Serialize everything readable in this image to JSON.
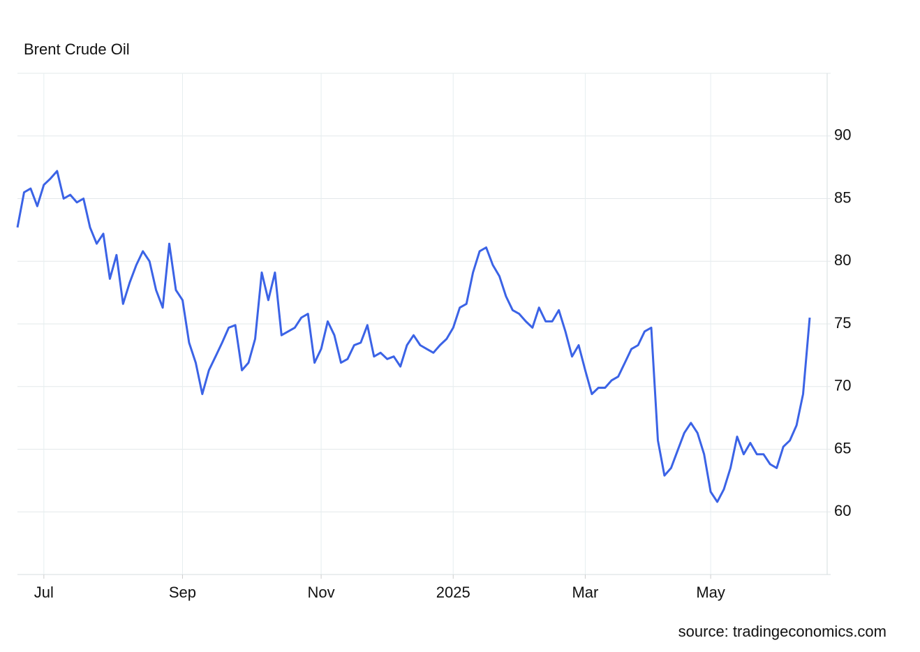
{
  "chart_data": {
    "type": "line",
    "title": "Brent Crude Oil",
    "source": "source: tradingeconomics.com",
    "categories": [
      null,
      null,
      null,
      null,
      "Jul",
      null,
      null,
      null,
      null,
      null,
      null,
      null,
      null,
      null,
      null,
      null,
      null,
      null,
      null,
      null,
      null,
      null,
      null,
      null,
      null,
      "Sep",
      null,
      null,
      null,
      null,
      null,
      null,
      null,
      null,
      null,
      null,
      null,
      null,
      null,
      null,
      null,
      null,
      null,
      null,
      null,
      null,
      "Nov",
      null,
      null,
      null,
      null,
      null,
      null,
      null,
      null,
      null,
      null,
      null,
      null,
      null,
      null,
      null,
      null,
      null,
      null,
      null,
      "2025",
      null,
      null,
      null,
      null,
      null,
      null,
      null,
      null,
      null,
      null,
      null,
      null,
      null,
      null,
      null,
      null,
      null,
      null,
      null,
      "Mar",
      null,
      null,
      null,
      null,
      null,
      null,
      null,
      null,
      null,
      null,
      null,
      null,
      null,
      null,
      null,
      null,
      null,
      null,
      "May",
      null,
      null,
      null,
      null,
      null,
      null,
      null,
      null,
      null,
      null,
      null,
      null,
      null,
      null,
      null
    ],
    "series": [
      {
        "name": "Brent Crude Oil",
        "color": "#3b63e6",
        "values": [
          82.7,
          85.5,
          85.8,
          84.4,
          86.1,
          86.6,
          87.2,
          85.0,
          85.3,
          84.7,
          85.0,
          82.7,
          81.4,
          82.2,
          78.6,
          80.5,
          76.6,
          78.3,
          79.7,
          80.8,
          80.0,
          77.7,
          76.3,
          81.4,
          77.7,
          76.9,
          73.5,
          71.9,
          69.4,
          71.3,
          72.4,
          73.5,
          74.7,
          74.9,
          71.3,
          71.9,
          73.8,
          79.1,
          76.9,
          79.1,
          74.1,
          74.4,
          74.7,
          75.5,
          75.8,
          71.9,
          73.0,
          75.2,
          74.1,
          71.9,
          72.2,
          73.3,
          73.5,
          74.9,
          72.4,
          72.7,
          72.2,
          72.4,
          71.6,
          73.3,
          74.1,
          73.3,
          73.0,
          72.7,
          73.3,
          73.8,
          74.7,
          76.3,
          76.6,
          79.1,
          80.8,
          81.1,
          79.7,
          78.8,
          77.2,
          76.1,
          75.8,
          75.2,
          74.7,
          76.3,
          75.2,
          75.2,
          76.1,
          74.4,
          72.4,
          73.3,
          71.3,
          69.4,
          69.9,
          69.9,
          70.5,
          70.8,
          71.9,
          73.0,
          73.3,
          74.4,
          74.7,
          65.7,
          62.9,
          63.5,
          64.9,
          66.3,
          67.1,
          66.3,
          64.6,
          61.6,
          60.8,
          61.8,
          63.5,
          66.0,
          64.6,
          65.5,
          64.6,
          64.6,
          63.8,
          63.5,
          65.2,
          65.7,
          66.9,
          69.4,
          75.5
        ]
      }
    ],
    "ylim": [
      55,
      95
    ],
    "yticks": [
      60,
      65,
      70,
      75,
      80,
      85,
      90
    ],
    "grid": true
  }
}
